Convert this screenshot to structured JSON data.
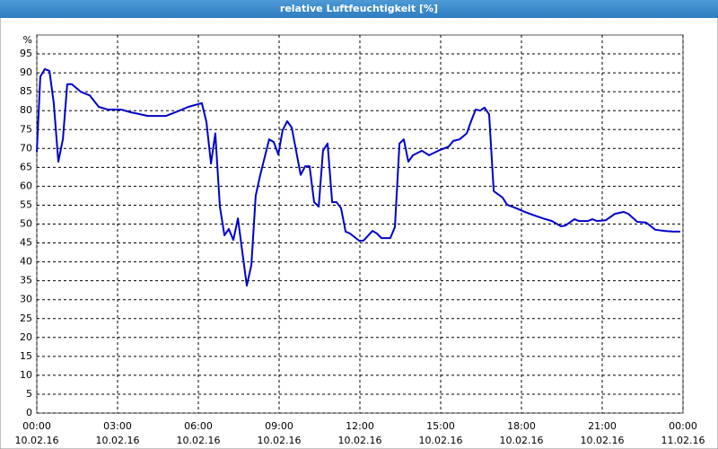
{
  "chart_data": {
    "type": "line",
    "title": "relative Luftfeuchtigkeit [%]",
    "y_unit": "%",
    "x": [
      0,
      0.13,
      0.3,
      0.47,
      0.63,
      0.8,
      0.97,
      1.13,
      1.3,
      1.63,
      1.97,
      2.3,
      2.63,
      3.13,
      3.47,
      4.13,
      4.8,
      5.3,
      5.63,
      6.13,
      6.3,
      6.47,
      6.63,
      6.8,
      6.97,
      7.13,
      7.3,
      7.47,
      7.63,
      7.8,
      7.97,
      8.13,
      8.3,
      8.63,
      8.8,
      8.97,
      9.13,
      9.3,
      9.47,
      9.8,
      9.97,
      10.13,
      10.3,
      10.47,
      10.63,
      10.8,
      10.97,
      11.13,
      11.3,
      11.47,
      11.63,
      11.97,
      12.13,
      12.47,
      12.63,
      12.8,
      13.13,
      13.3,
      13.47,
      13.63,
      13.8,
      13.97,
      14.3,
      14.57,
      14.8,
      14.97,
      15.13,
      15.3,
      15.47,
      15.7,
      15.97,
      16.13,
      16.3,
      16.47,
      16.63,
      16.8,
      16.97,
      17.3,
      17.47,
      17.8,
      18.13,
      18.47,
      18.8,
      19.13,
      19.47,
      19.63,
      19.97,
      20.13,
      20.47,
      20.63,
      20.8,
      21.13,
      21.47,
      21.8,
      21.97,
      22.3,
      22.63,
      22.97,
      23.3,
      23.63,
      23.9
    ],
    "values": [
      69,
      89,
      91,
      90.5,
      82,
      66.5,
      72.5,
      87,
      87,
      85,
      84,
      81,
      80.3,
      80.3,
      79.6,
      78.6,
      78.6,
      80,
      81,
      82,
      77,
      66,
      74,
      54.6,
      47,
      48.7,
      45.8,
      51.5,
      42.8,
      33.7,
      39.2,
      57.5,
      63,
      72.4,
      71.7,
      68.4,
      74.8,
      77.2,
      75.5,
      63,
      65.3,
      65.3,
      55.8,
      54.6,
      69.4,
      71.3,
      55.8,
      55.8,
      54.2,
      48,
      47.5,
      45.6,
      45.6,
      48.2,
      47.5,
      46.3,
      46.3,
      49.2,
      71.3,
      72.4,
      66.5,
      68.2,
      69.4,
      68.2,
      69,
      69.6,
      70,
      70.5,
      72,
      72.4,
      74,
      77.2,
      80.3,
      80,
      80.8,
      79,
      58.7,
      57,
      55.1,
      54.2,
      53.2,
      52.3,
      51.5,
      50.8,
      49.4,
      49.6,
      51.3,
      50.8,
      50.8,
      51.3,
      50.8,
      51,
      52.7,
      53.2,
      52.7,
      50.6,
      50.4,
      48.5,
      48.2,
      48,
      48
    ],
    "color": "#0000cc",
    "xlim": [
      0,
      24
    ],
    "xticks": [
      {
        "value": 0,
        "label": "00:00"
      },
      {
        "value": 3,
        "label": "03:00"
      },
      {
        "value": 6,
        "label": "06:00"
      },
      {
        "value": 9,
        "label": "09:00"
      },
      {
        "value": 12,
        "label": "12:00"
      },
      {
        "value": 15,
        "label": "15:00"
      },
      {
        "value": 18,
        "label": "18:00"
      },
      {
        "value": 21,
        "label": "21:00"
      },
      {
        "value": 24,
        "label": "00:00"
      }
    ],
    "xtick_dates": [
      "10.02.16",
      "10.02.16",
      "10.02.16",
      "10.02.16",
      "10.02.16",
      "10.02.16",
      "10.02.16",
      "10.02.16",
      "11.02.16"
    ],
    "ylim": [
      0,
      100
    ],
    "yticks": [
      0,
      5,
      10,
      15,
      20,
      25,
      30,
      35,
      40,
      45,
      50,
      55,
      60,
      65,
      70,
      75,
      80,
      85,
      90,
      95
    ],
    "grid": true
  }
}
